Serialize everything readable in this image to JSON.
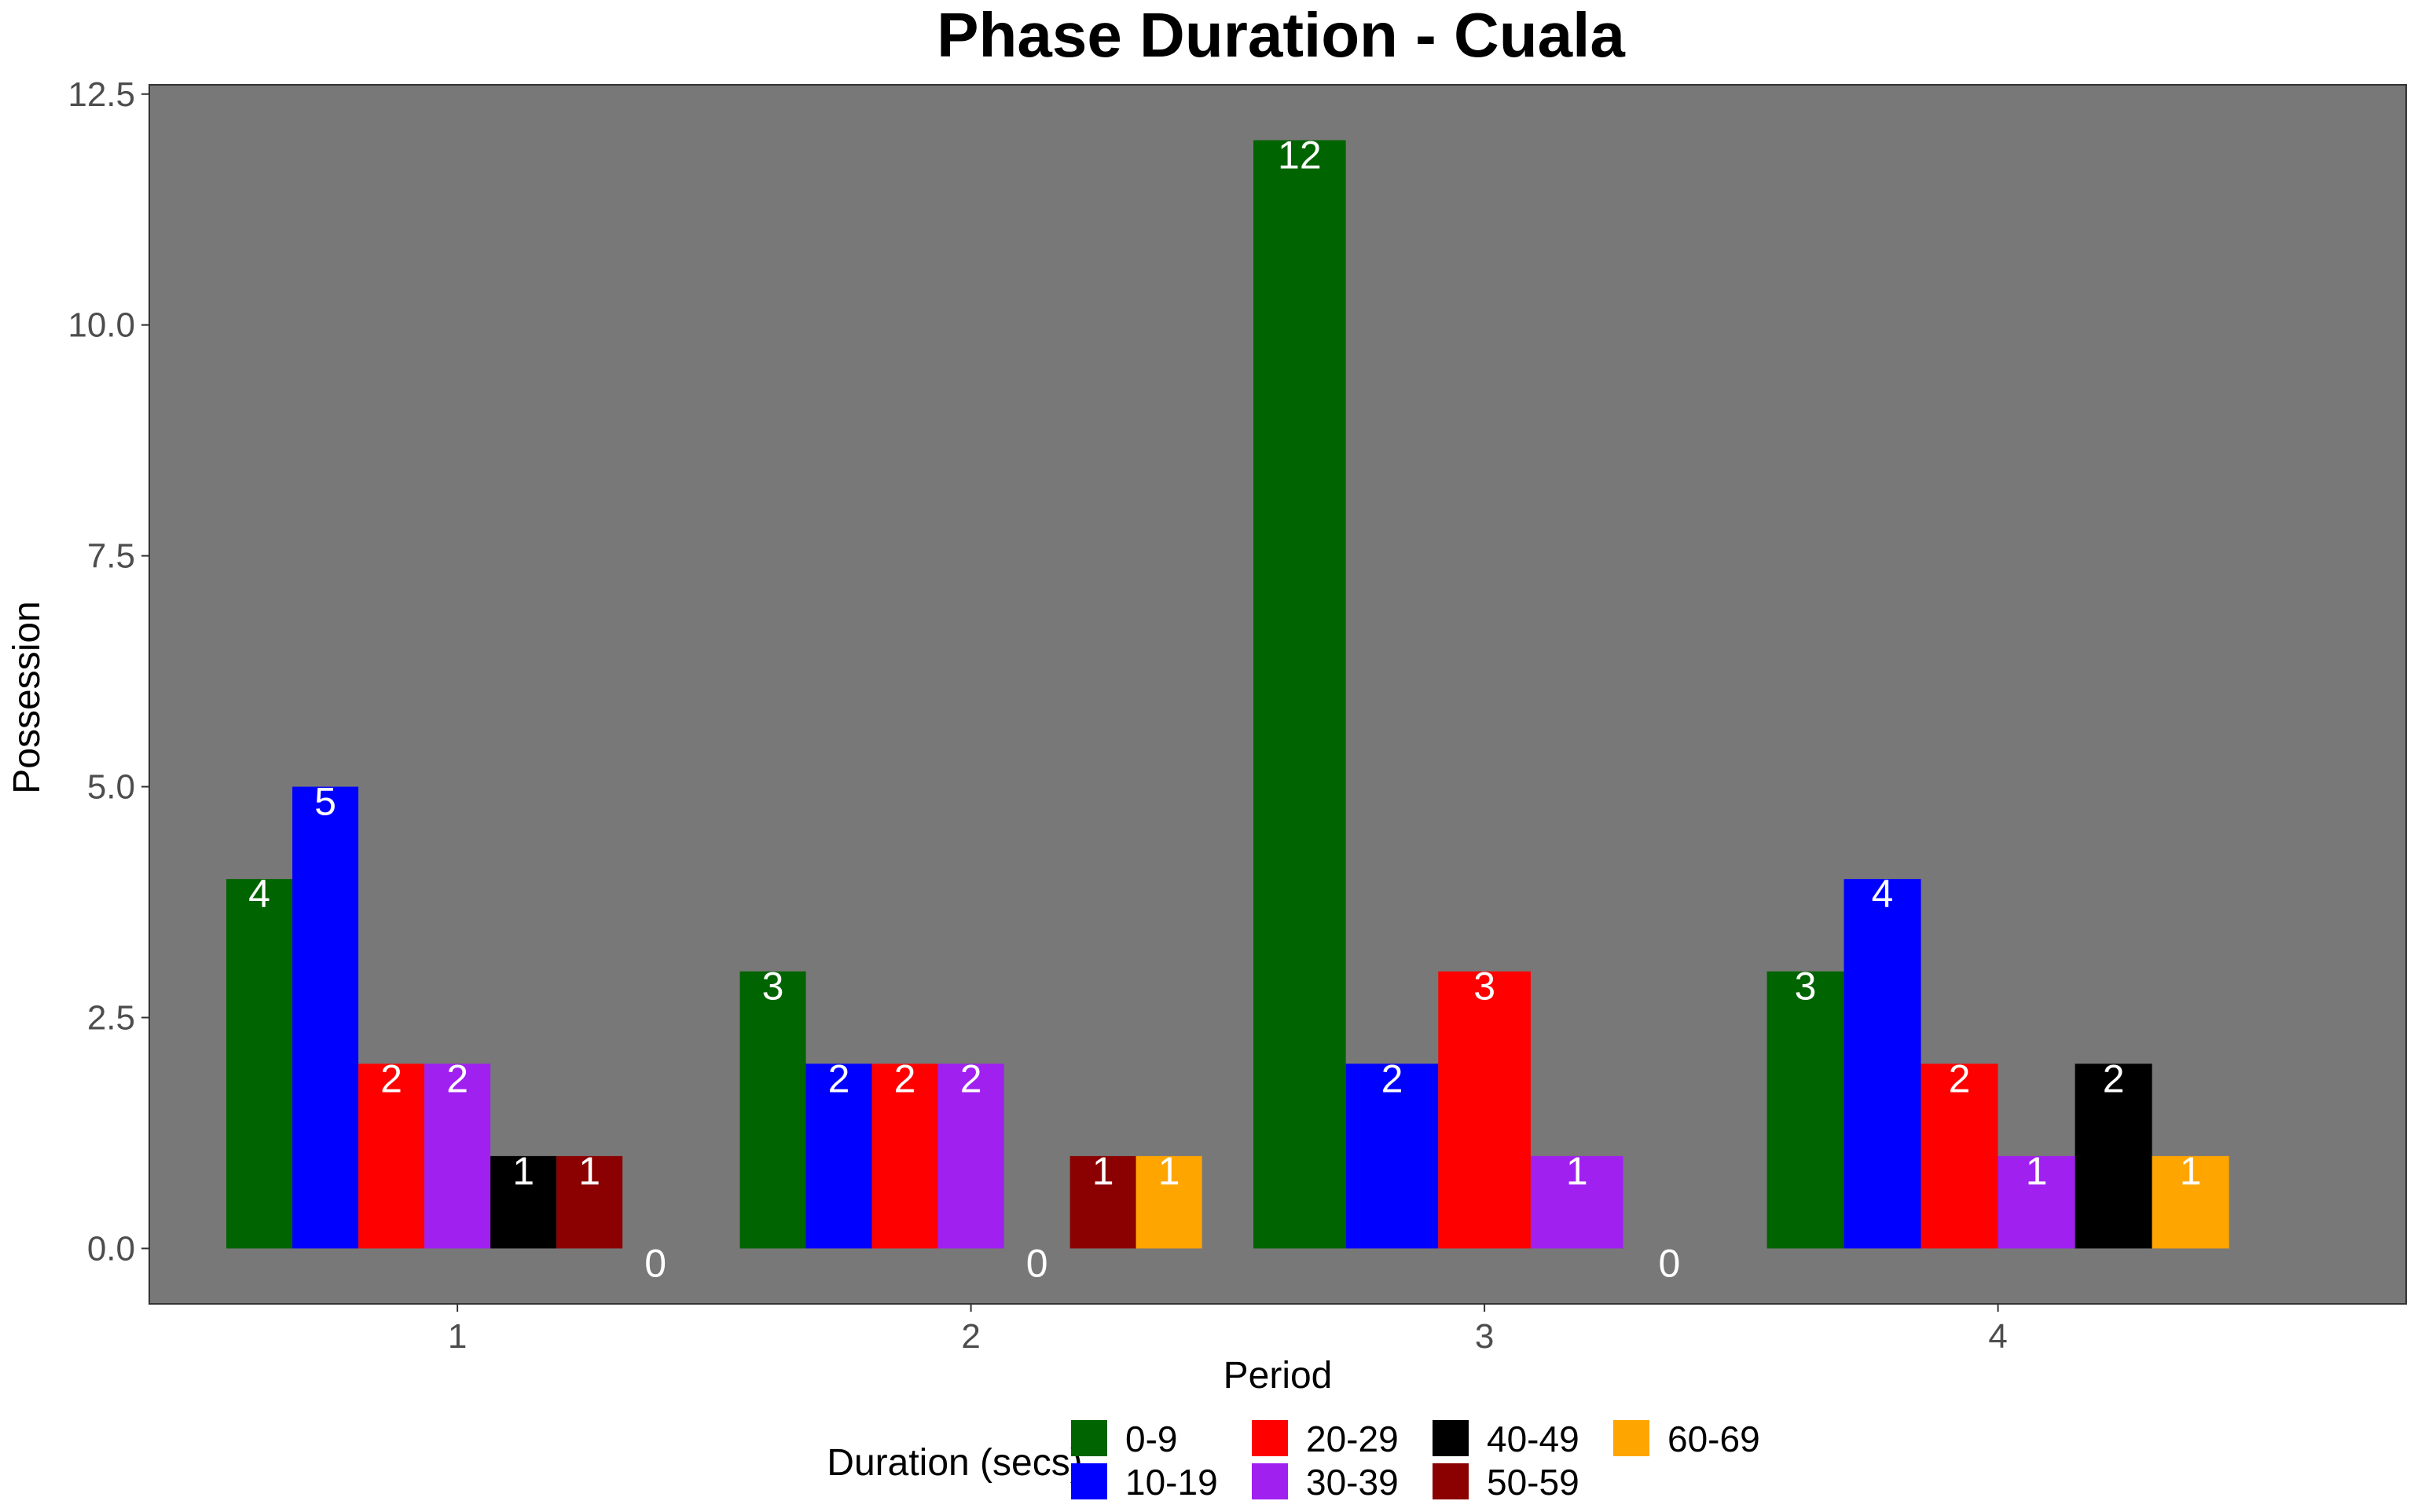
{
  "chart_data": {
    "type": "bar",
    "title": "Phase Duration - Cuala",
    "xlabel": "Period",
    "ylabel": "Possession",
    "ylim": [
      -0.6,
      12.6
    ],
    "yticks": [
      0.0,
      2.5,
      5.0,
      7.5,
      10.0,
      12.5
    ],
    "ytick_labels": [
      "0.0",
      "2.5",
      "5.0",
      "7.5",
      "10.0",
      "12.5"
    ],
    "categories": [
      "1",
      "2",
      "3",
      "4"
    ],
    "grid": false,
    "panel_color": "#787878",
    "legend": {
      "title": "Duration (secs)",
      "position": "bottom",
      "items": [
        {
          "label": "0-9",
          "color": "#006400"
        },
        {
          "label": "10-19",
          "color": "#0000ff"
        },
        {
          "label": "20-29",
          "color": "#ff0000"
        },
        {
          "label": "30-39",
          "color": "#a020f0"
        },
        {
          "label": "40-49",
          "color": "#000000"
        },
        {
          "label": "50-59",
          "color": "#8b0000"
        },
        {
          "label": "60-69",
          "color": "#ffa500"
        }
      ]
    },
    "groups": [
      {
        "category": "1",
        "bars": [
          {
            "series": "0-9",
            "value": 4,
            "label": "4"
          },
          {
            "series": "10-19",
            "value": 5,
            "label": "5"
          },
          {
            "series": "20-29",
            "value": 2,
            "label": "2"
          },
          {
            "series": "30-39",
            "value": 2,
            "label": "2"
          },
          {
            "series": "40-49",
            "value": 1,
            "label": "1"
          },
          {
            "series": "50-59",
            "value": 1,
            "label": "1"
          },
          {
            "series": "",
            "value": 0,
            "label": "0"
          }
        ]
      },
      {
        "category": "2",
        "bars": [
          {
            "series": "0-9",
            "value": 3,
            "label": "3"
          },
          {
            "series": "10-19",
            "value": 2,
            "label": "2"
          },
          {
            "series": "20-29",
            "value": 2,
            "label": "2"
          },
          {
            "series": "30-39",
            "value": 2,
            "label": "2"
          },
          {
            "series": "",
            "value": 0,
            "label": "0"
          },
          {
            "series": "50-59",
            "value": 1,
            "label": "1"
          },
          {
            "series": "60-69",
            "value": 1,
            "label": "1"
          }
        ]
      },
      {
        "category": "3",
        "bars": [
          {
            "series": "0-9",
            "value": 12,
            "label": "12"
          },
          {
            "series": "10-19",
            "value": 2,
            "label": "2"
          },
          {
            "series": "20-29",
            "value": 3,
            "label": "3"
          },
          {
            "series": "30-39",
            "value": 1,
            "label": "1"
          },
          {
            "series": "",
            "value": 0,
            "label": "0"
          }
        ]
      },
      {
        "category": "4",
        "bars": [
          {
            "series": "0-9",
            "value": 3,
            "label": "3"
          },
          {
            "series": "10-19",
            "value": 4,
            "label": "4"
          },
          {
            "series": "20-29",
            "value": 2,
            "label": "2"
          },
          {
            "series": "30-39",
            "value": 1,
            "label": "1"
          },
          {
            "series": "40-49",
            "value": 2,
            "label": "2"
          },
          {
            "series": "60-69",
            "value": 1,
            "label": "1"
          }
        ]
      }
    ]
  }
}
